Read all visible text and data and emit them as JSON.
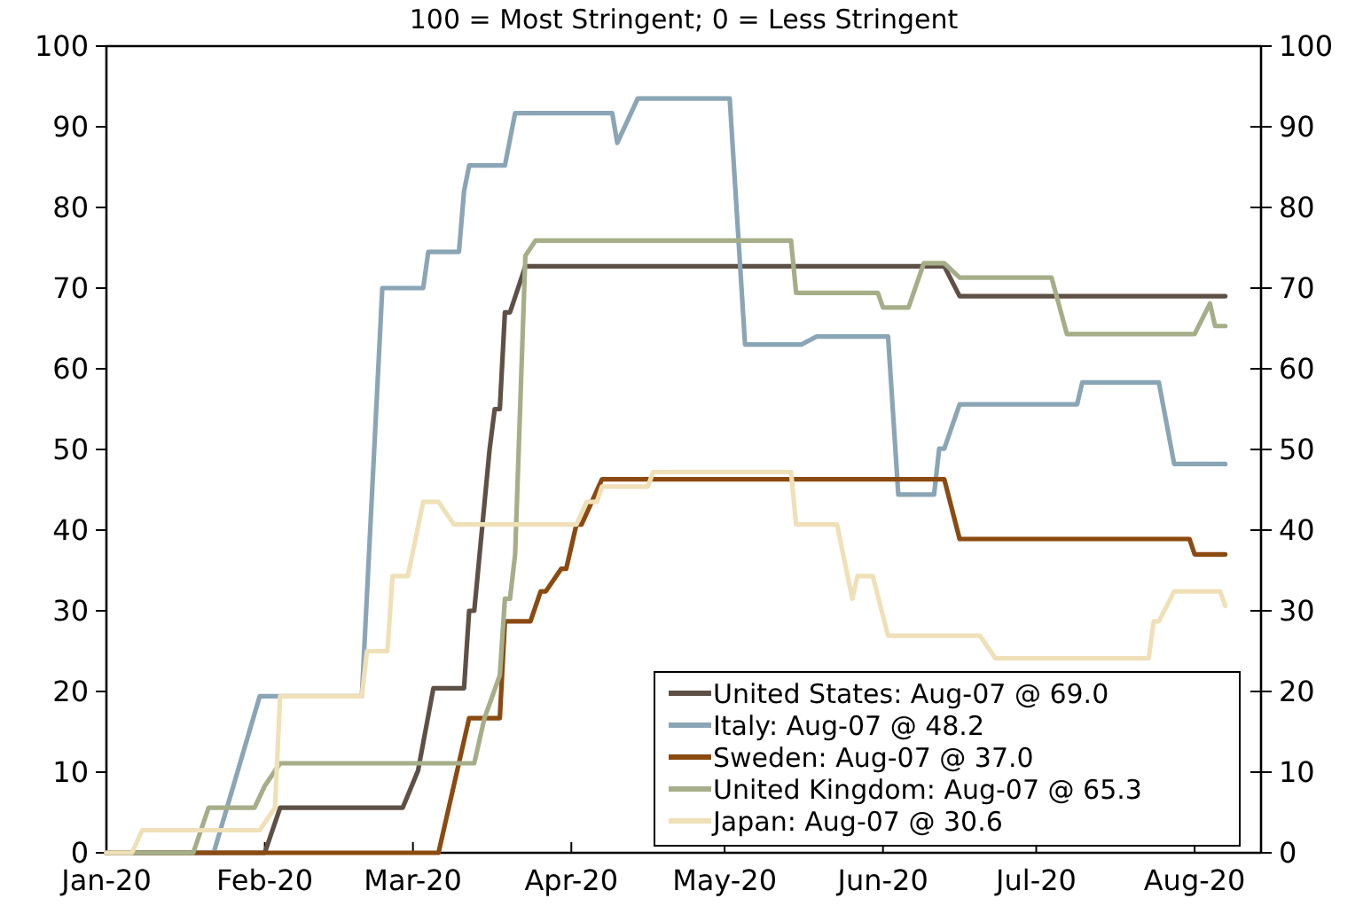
{
  "chart_data": {
    "type": "line",
    "title": "100 = Most Stringent; 0 = Less Stringent",
    "xlim": [
      "2020-01-01",
      "2020-08-14"
    ],
    "xticks": [
      {
        "value": "2020-01-01",
        "label": "Jan-20"
      },
      {
        "value": "2020-02-01",
        "label": "Feb-20"
      },
      {
        "value": "2020-03-01",
        "label": "Mar-20"
      },
      {
        "value": "2020-04-01",
        "label": "Apr-20"
      },
      {
        "value": "2020-05-01",
        "label": "May-20"
      },
      {
        "value": "2020-06-01",
        "label": "Jun-20"
      },
      {
        "value": "2020-07-01",
        "label": "Jul-20"
      },
      {
        "value": "2020-08-01",
        "label": "Aug-20"
      }
    ],
    "ylim": [
      0,
      100
    ],
    "yticks": [
      0,
      10,
      20,
      30,
      40,
      50,
      60,
      70,
      80,
      90,
      100
    ],
    "y2lim": [
      0,
      100
    ],
    "y2ticks": [
      0,
      10,
      20,
      30,
      40,
      50,
      60,
      70,
      80,
      90,
      100
    ],
    "grid": false,
    "legend": "bottom right",
    "marker": "none",
    "line_style": "solid",
    "series": [
      {
        "name": "United States: Aug-07 @ 69.0",
        "color": "#5f5046",
        "x": [
          "2020-01-01",
          "2020-02-01",
          "2020-02-04",
          "2020-02-28",
          "2020-03-02",
          "2020-03-05",
          "2020-03-11",
          "2020-03-12",
          "2020-03-13",
          "2020-03-16",
          "2020-03-17",
          "2020-03-18",
          "2020-03-19",
          "2020-03-20",
          "2020-03-23",
          "2020-06-13",
          "2020-06-16",
          "2020-08-07"
        ],
        "values": [
          0,
          0,
          5.6,
          5.6,
          10.2,
          20.4,
          20.4,
          30,
          30,
          50,
          55,
          55,
          67,
          67,
          72.7,
          72.7,
          69,
          69
        ]
      },
      {
        "name": "Italy: Aug-07 @ 48.2",
        "color": "#8aa5b5",
        "x": [
          "2020-01-01",
          "2020-01-22",
          "2020-01-31",
          "2020-02-20",
          "2020-02-24",
          "2020-03-03",
          "2020-03-04",
          "2020-03-10",
          "2020-03-11",
          "2020-03-12",
          "2020-03-19",
          "2020-03-21",
          "2020-04-09",
          "2020-04-10",
          "2020-04-14",
          "2020-05-02",
          "2020-05-05",
          "2020-05-16",
          "2020-05-19",
          "2020-06-02",
          "2020-06-04",
          "2020-06-11",
          "2020-06-12",
          "2020-06-13",
          "2020-06-16",
          "2020-07-09",
          "2020-07-10",
          "2020-07-25",
          "2020-07-28",
          "2020-08-07"
        ],
        "values": [
          0,
          0,
          19.4,
          19.4,
          70,
          70,
          74.5,
          74.5,
          82,
          85.2,
          85.2,
          91.7,
          91.7,
          88,
          93.5,
          93.5,
          63,
          63,
          64,
          64,
          44.4,
          44.4,
          50.1,
          50.1,
          55.6,
          55.6,
          58.3,
          58.3,
          48.2,
          48.2
        ]
      },
      {
        "name": "Sweden: Aug-07 @ 37.0",
        "color": "#8b4a0f",
        "x": [
          "2020-01-01",
          "2020-03-06",
          "2020-03-12",
          "2020-03-18",
          "2020-03-19",
          "2020-03-24",
          "2020-03-26",
          "2020-03-27",
          "2020-03-30",
          "2020-03-31",
          "2020-04-02",
          "2020-04-03",
          "2020-04-05",
          "2020-04-07",
          "2020-06-13",
          "2020-06-16",
          "2020-07-31",
          "2020-08-01",
          "2020-08-07"
        ],
        "values": [
          0,
          0,
          16.7,
          16.7,
          28.7,
          28.7,
          32.4,
          32.4,
          35.2,
          35.2,
          40.7,
          40.7,
          43.5,
          46.3,
          46.3,
          38.9,
          38.9,
          37,
          37
        ]
      },
      {
        "name": "United Kingdom: Aug-07 @ 65.3",
        "color": "#a5ae88",
        "x": [
          "2020-01-01",
          "2020-01-18",
          "2020-01-21",
          "2020-01-30",
          "2020-02-01",
          "2020-02-04",
          "2020-03-13",
          "2020-03-15",
          "2020-03-18",
          "2020-03-19",
          "2020-03-20",
          "2020-03-21",
          "2020-03-23",
          "2020-03-25",
          "2020-05-14",
          "2020-05-15",
          "2020-05-31",
          "2020-06-01",
          "2020-06-06",
          "2020-06-09",
          "2020-06-13",
          "2020-06-16",
          "2020-07-04",
          "2020-07-07",
          "2020-08-01",
          "2020-08-04",
          "2020-08-05",
          "2020-08-07"
        ],
        "values": [
          0,
          0,
          5.6,
          5.6,
          8.3,
          11.1,
          11.1,
          16.7,
          22,
          31.5,
          31.5,
          37,
          74,
          75.9,
          75.9,
          69.4,
          69.4,
          67.6,
          67.6,
          73.1,
          73.1,
          71.3,
          71.3,
          64.3,
          64.3,
          68.1,
          65.3,
          65.3
        ]
      },
      {
        "name": "Japan: Aug-07 @ 30.6",
        "color": "#f0e0b8",
        "x": [
          "2020-01-01",
          "2020-01-06",
          "2020-01-08",
          "2020-01-31",
          "2020-02-03",
          "2020-02-04",
          "2020-02-20",
          "2020-02-21",
          "2020-02-25",
          "2020-02-26",
          "2020-02-29",
          "2020-03-03",
          "2020-03-06",
          "2020-03-09",
          "2020-04-02",
          "2020-04-04",
          "2020-04-06",
          "2020-04-07",
          "2020-04-16",
          "2020-04-17",
          "2020-05-14",
          "2020-05-15",
          "2020-05-23",
          "2020-05-26",
          "2020-05-27",
          "2020-05-30",
          "2020-06-02",
          "2020-06-20",
          "2020-06-23",
          "2020-07-23",
          "2020-07-24",
          "2020-07-25",
          "2020-07-28",
          "2020-08-06",
          "2020-08-07"
        ],
        "values": [
          0,
          0,
          2.8,
          2.8,
          5.6,
          19.4,
          19.4,
          25,
          25,
          34.3,
          34.3,
          43.5,
          43.5,
          40.7,
          40.7,
          43.5,
          43.5,
          45.4,
          45.4,
          47.2,
          47.2,
          40.7,
          40.7,
          31.5,
          34.3,
          34.3,
          26.9,
          26.9,
          24.1,
          24.1,
          28.7,
          28.7,
          32.4,
          32.4,
          30.6
        ]
      }
    ]
  }
}
